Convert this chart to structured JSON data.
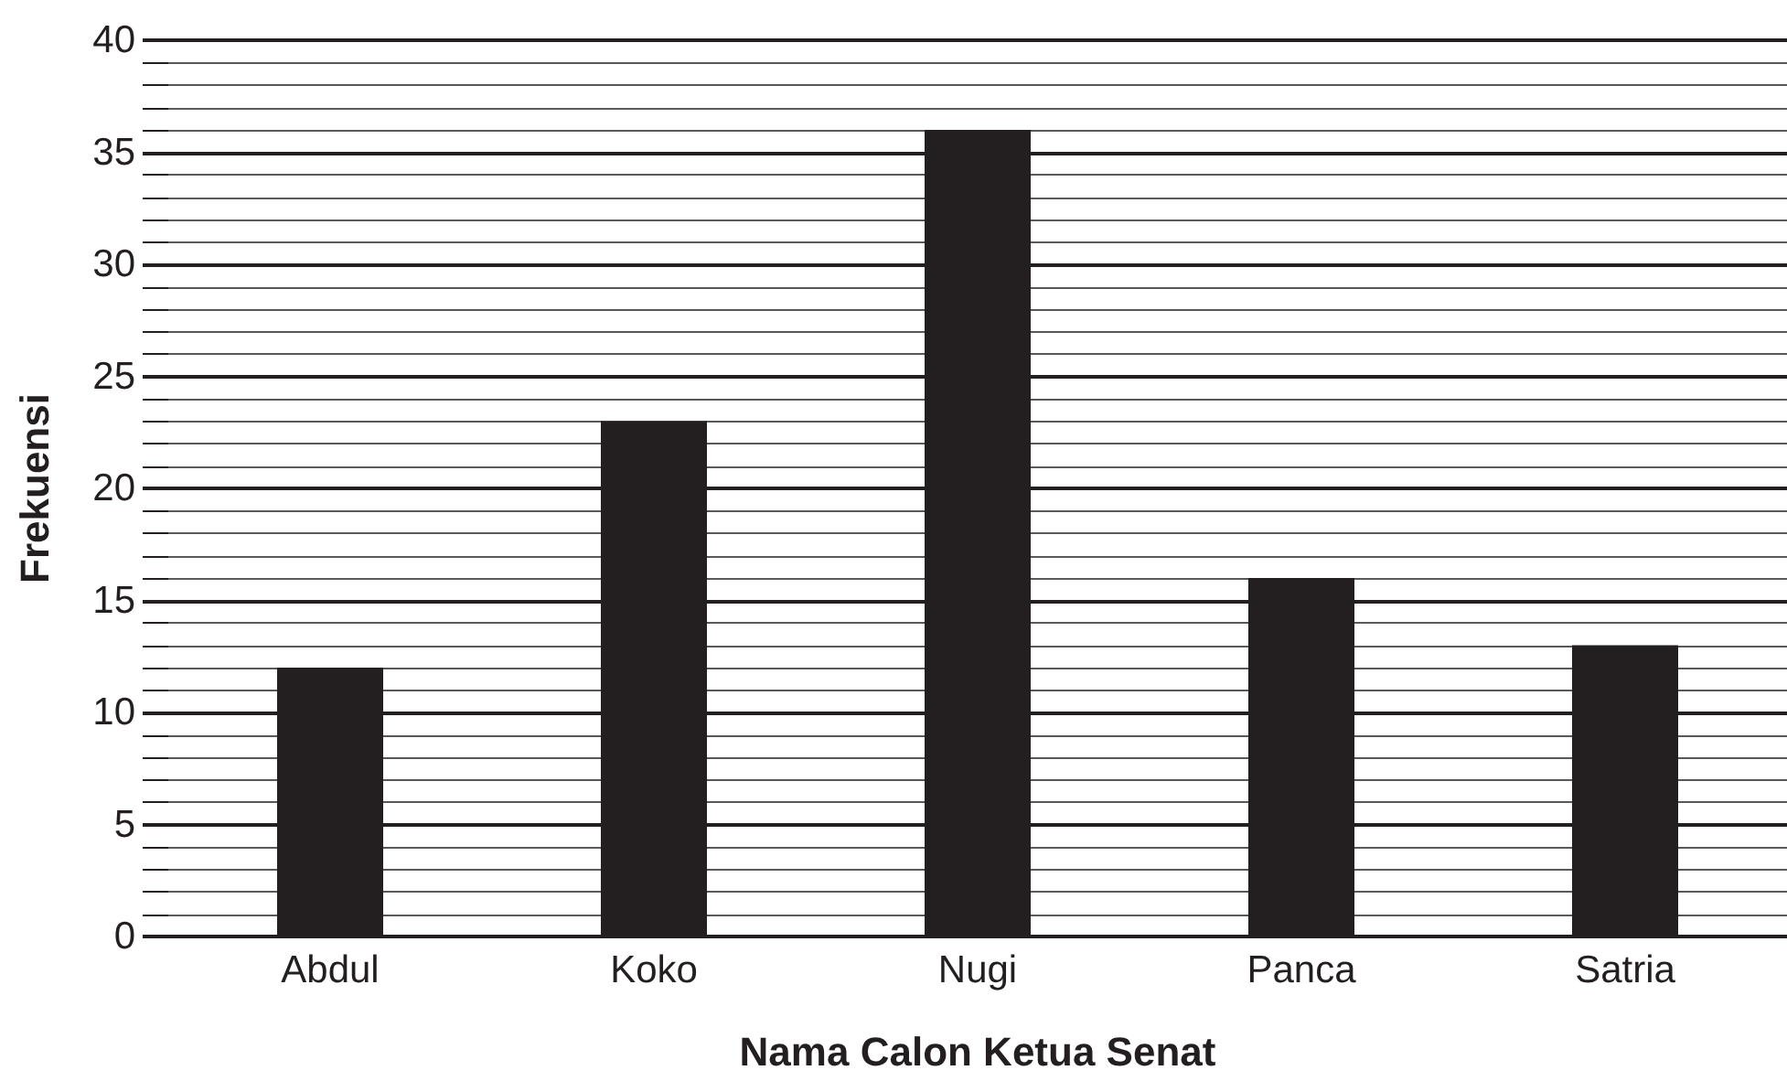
{
  "chart_data": {
    "type": "bar",
    "xlabel": "Nama Calon Ketua Senat",
    "ylabel": "Frekuensi",
    "categories": [
      "Abdul",
      "Koko",
      "Nugi",
      "Panca",
      "Satria"
    ],
    "values": [
      12,
      23,
      36,
      16,
      13
    ],
    "color": "#231f20",
    "ylim": [
      0,
      40
    ],
    "yticks": [
      0,
      {
        "value": 1,
        "label": null
      },
      {
        "value": 2,
        "label": null
      },
      {
        "value": 3,
        "label": null
      },
      {
        "value": 4,
        "label": null
      },
      5,
      {
        "value": 6,
        "label": null
      },
      {
        "value": 7,
        "label": null
      },
      {
        "value": 8,
        "label": null
      },
      {
        "value": 9,
        "label": null
      },
      10,
      {
        "value": 11,
        "label": null
      },
      {
        "value": 12,
        "label": null
      },
      {
        "value": 13,
        "label": null
      },
      {
        "value": 14,
        "label": null
      },
      15,
      {
        "value": 16,
        "label": null
      },
      {
        "value": 17,
        "label": null
      },
      {
        "value": 18,
        "label": null
      },
      {
        "value": 19,
        "label": null
      },
      20,
      {
        "value": 21,
        "label": null
      },
      {
        "value": 22,
        "label": null
      },
      {
        "value": 23,
        "label": null
      },
      {
        "value": 24,
        "label": null
      },
      25,
      {
        "value": 26,
        "label": null
      },
      {
        "value": 27,
        "label": null
      },
      {
        "value": 28,
        "label": null
      },
      {
        "value": 29,
        "label": null
      },
      30,
      {
        "value": 31,
        "label": null
      },
      {
        "value": 32,
        "label": null
      },
      {
        "value": 33,
        "label": null
      },
      {
        "value": 34,
        "label": null
      },
      35,
      {
        "value": 36,
        "label": null
      },
      {
        "value": 37,
        "label": null
      },
      {
        "value": 38,
        "label": null
      },
      {
        "value": 39,
        "label": null
      },
      40
    ],
    "grid": "y"
  }
}
